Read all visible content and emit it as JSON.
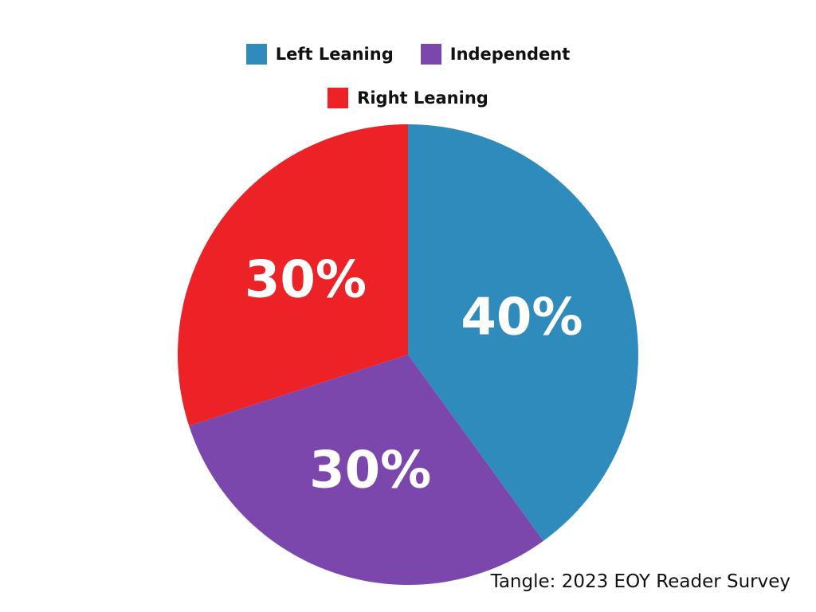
{
  "chart_data": {
    "type": "pie",
    "categories": [
      "Left Leaning",
      "Independent",
      "Right Leaning"
    ],
    "values": [
      40,
      30,
      30
    ],
    "labels": [
      "40%",
      "30%",
      "30%"
    ],
    "colors": [
      "#2e8bbb",
      "#7b47ad",
      "#ec2226"
    ],
    "legend_position": "top",
    "start_angle": "12 o'clock, clockwise"
  },
  "source": "Tangle: 2023 EOY Reader Survey"
}
